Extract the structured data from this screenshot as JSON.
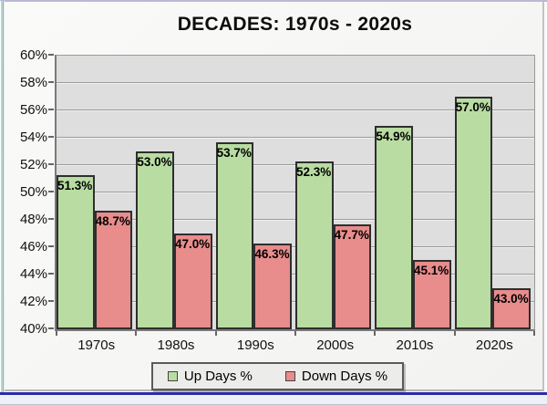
{
  "window": {
    "frame_colors": {
      "top_edge": "#b9b9d6",
      "left_edge_teal": "#8fb5b2",
      "bottom_accent_blue": "#2b2ba6",
      "panel_bg": "#f5f5f3",
      "plot_bg": "#dedede"
    }
  },
  "chart_data": {
    "type": "bar",
    "title": "DECADES: 1970s - 2020s",
    "categories": [
      "1970s",
      "1980s",
      "1990s",
      "2000s",
      "2010s",
      "2020s"
    ],
    "series": [
      {
        "name": "Up Days %",
        "color": "#b9dca2",
        "border_color": "#2e2e2e",
        "values": [
          51.3,
          53.0,
          53.7,
          52.3,
          54.9,
          57.0
        ],
        "value_labels": [
          "51.3%",
          "53.0%",
          "53.7%",
          "52.3%",
          "54.9%",
          "57.0%"
        ]
      },
      {
        "name": "Down Days %",
        "color": "#e88c8c",
        "border_color": "#2e2e2e",
        "values": [
          48.7,
          47.0,
          46.3,
          47.7,
          45.1,
          43.0
        ],
        "value_labels": [
          "48.7%",
          "47.0%",
          "46.3%",
          "47.7%",
          "45.1%",
          "43.0%"
        ]
      }
    ],
    "ylim": [
      40,
      60
    ],
    "ytick_step": 2,
    "ytick_labels": [
      "60%",
      "58%",
      "56%",
      "54%",
      "52%",
      "50%",
      "48%",
      "46%",
      "44%",
      "42%",
      "40%"
    ],
    "grid": true,
    "gridline_color": "#9c9c9c",
    "legend_position": "bottom"
  }
}
